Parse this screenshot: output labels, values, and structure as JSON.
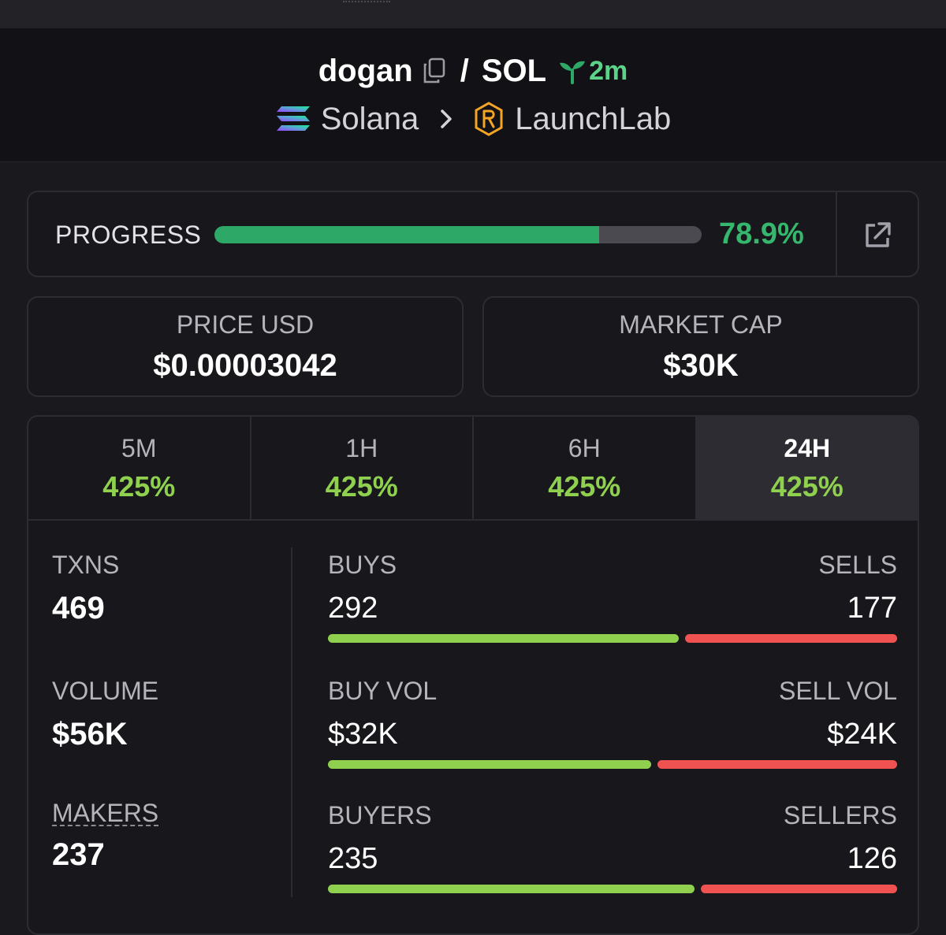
{
  "header": {
    "token": "dogan",
    "separator": "/",
    "quote": "SOL",
    "age": "2m",
    "chain": "Solana",
    "dex": "LaunchLab"
  },
  "progress": {
    "label": "PROGRESS",
    "value_text": "78.9%",
    "fraction": 0.789
  },
  "stats": {
    "price_label": "PRICE USD",
    "price_value": "$0.00003042",
    "mcap_label": "MARKET CAP",
    "mcap_value": "$30K"
  },
  "tabs": [
    {
      "label": "5M",
      "change": "425%",
      "active": false
    },
    {
      "label": "1H",
      "change": "425%",
      "active": false
    },
    {
      "label": "6H",
      "change": "425%",
      "active": false
    },
    {
      "label": "24H",
      "change": "425%",
      "active": true
    }
  ],
  "left_stats": {
    "txns_label": "TXNS",
    "txns_value": "469",
    "volume_label": "VOLUME",
    "volume_value": "$56K",
    "makers_label": "MAKERS",
    "makers_value": "237"
  },
  "splits": [
    {
      "left_label": "BUYS",
      "left_value": "292",
      "right_label": "SELLS",
      "right_value": "177",
      "left_share": 0.6226
    },
    {
      "left_label": "BUY VOL",
      "left_value": "$32K",
      "right_label": "SELL VOL",
      "right_value": "$24K",
      "left_share": 0.5744
    },
    {
      "left_label": "BUYERS",
      "left_value": "235",
      "right_label": "SELLERS",
      "right_value": "126",
      "left_share": 0.651
    }
  ],
  "colors": {
    "positive": "#8fd14f",
    "negative": "#f05252",
    "progress": "#2ea866",
    "age": "#5dd38a"
  },
  "icons": {
    "copy": "copy-icon",
    "age": "sprout-icon",
    "chain": "solana-logo",
    "separator": "chevron-right-icon",
    "dex": "launchlab-logo",
    "open": "external-link-icon"
  }
}
